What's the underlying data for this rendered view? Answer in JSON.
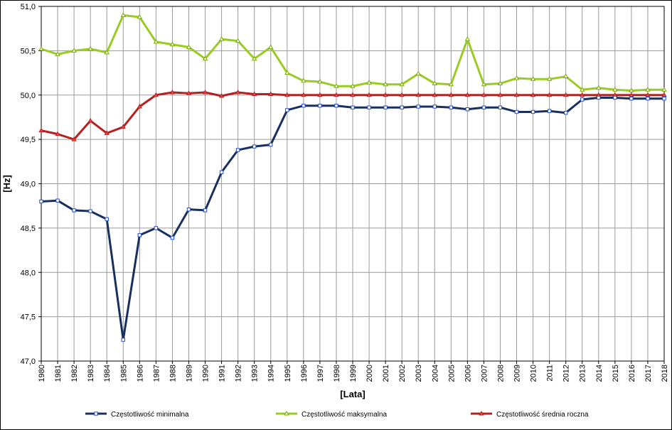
{
  "chart_data": {
    "type": "line",
    "xlabel": "[Lata]",
    "ylabel": "[Hz]",
    "ylim": [
      47.0,
      51.0
    ],
    "ytick_labels": [
      "47,0",
      "47,5",
      "48,0",
      "48,5",
      "49,0",
      "49,5",
      "50,0",
      "50,5",
      "51,0"
    ],
    "ytick_values": [
      47.0,
      47.5,
      48.0,
      48.5,
      49.0,
      49.5,
      50.0,
      50.5,
      51.0
    ],
    "grid": true,
    "legend_position": "bottom",
    "x": [
      "1980",
      "1981",
      "1982",
      "1983",
      "1984",
      "1985",
      "1986",
      "1987",
      "1988",
      "1989",
      "1990",
      "1991",
      "1992",
      "1993",
      "1994",
      "1995",
      "1996",
      "1997",
      "1998",
      "1999",
      "2000",
      "2001",
      "2002",
      "2003",
      "2004",
      "2005",
      "2006",
      "2007",
      "2008",
      "2009",
      "2010",
      "2011",
      "2012",
      "2013",
      "2014",
      "2015",
      "2016",
      "2017",
      "2018"
    ],
    "series": [
      {
        "name": "Częstotliwość minimalna",
        "color": "#17305e",
        "marker_fill": "#ffffff",
        "marker_stroke": "#1f4fd0",
        "marker": "square",
        "values": [
          48.8,
          48.81,
          48.7,
          48.69,
          48.6,
          47.24,
          48.42,
          48.5,
          48.39,
          48.71,
          48.7,
          49.13,
          49.38,
          49.42,
          49.44,
          49.83,
          49.88,
          49.88,
          49.88,
          49.86,
          49.86,
          49.86,
          49.86,
          49.87,
          49.87,
          49.86,
          49.84,
          49.86,
          49.86,
          49.81,
          49.81,
          49.82,
          49.8,
          49.95,
          49.97,
          49.97,
          49.96,
          49.96,
          49.96
        ]
      },
      {
        "name": "Częstotliwość maksymalna",
        "color": "#99cc22",
        "marker_fill": "#ffffff",
        "marker_stroke": "#77aa00",
        "marker": "triangle",
        "values": [
          50.52,
          50.46,
          50.5,
          50.52,
          50.48,
          50.9,
          50.88,
          50.6,
          50.57,
          50.54,
          50.41,
          50.63,
          50.61,
          50.41,
          50.54,
          50.25,
          50.16,
          50.15,
          50.1,
          50.1,
          50.14,
          50.12,
          50.12,
          50.24,
          50.13,
          50.12,
          50.63,
          50.12,
          50.13,
          50.19,
          50.18,
          50.18,
          50.21,
          50.06,
          50.08,
          50.06,
          50.05,
          50.06,
          50.06
        ]
      },
      {
        "name": "Częstotliwość średnia roczna",
        "color": "#b22222",
        "marker_fill": "#ff4444",
        "marker_stroke": "#b22222",
        "marker": "triangle",
        "values": [
          49.6,
          49.56,
          49.5,
          49.71,
          49.57,
          49.64,
          49.87,
          50.0,
          50.03,
          50.02,
          50.03,
          49.99,
          50.03,
          50.01,
          50.01,
          50.0,
          50.0,
          50.0,
          50.0,
          50.0,
          50.0,
          50.0,
          50.0,
          50.0,
          50.0,
          50.0,
          50.0,
          50.0,
          50.0,
          50.0,
          50.0,
          50.0,
          50.0,
          50.0,
          50.0,
          50.0,
          50.0,
          50.0,
          50.0
        ]
      }
    ]
  }
}
